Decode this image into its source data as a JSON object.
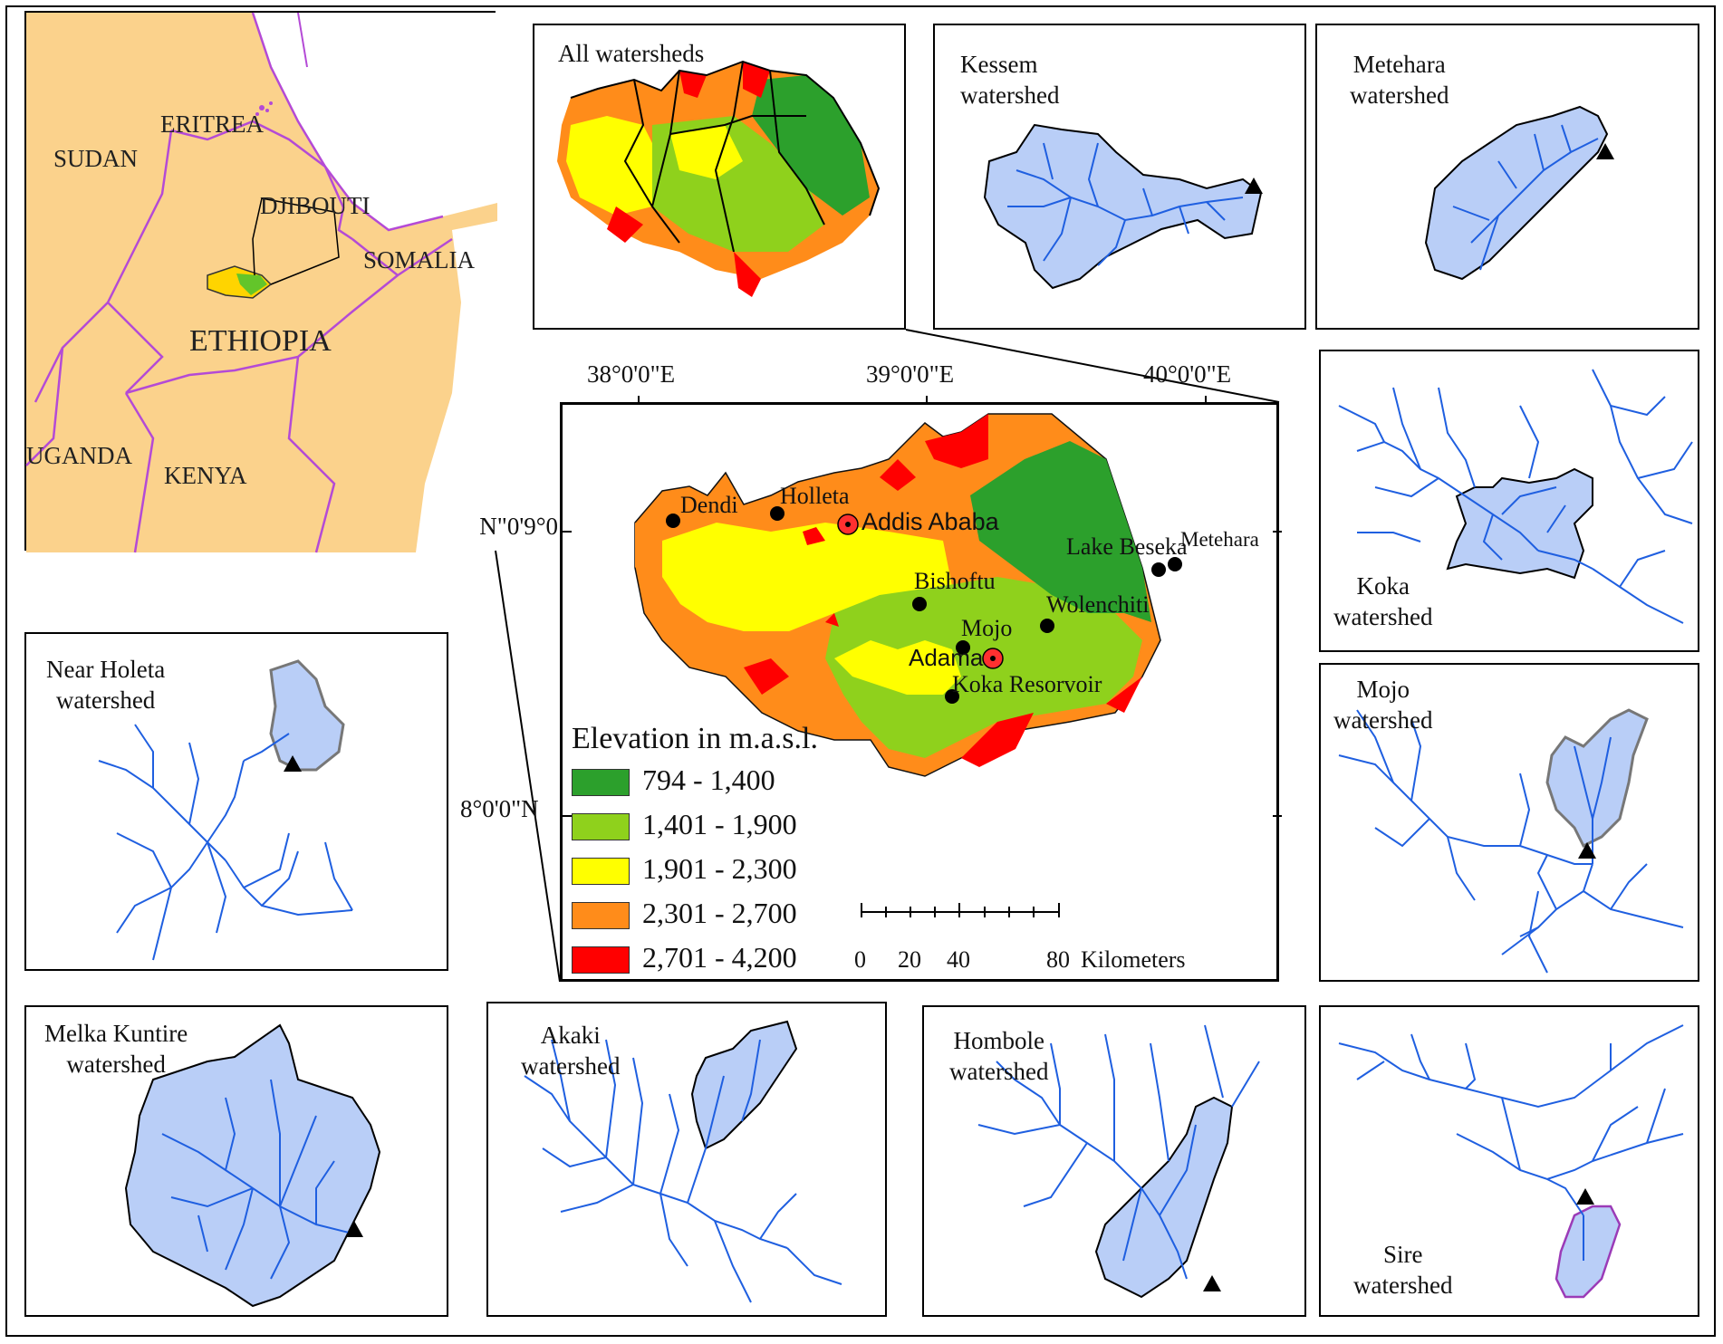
{
  "locator": {
    "countries": [
      {
        "id": "sudan",
        "label": "SUDAN"
      },
      {
        "id": "eritrea",
        "label": "ERITREA"
      },
      {
        "id": "djibouti",
        "label": "DJIBOUTI"
      },
      {
        "id": "somalia",
        "label": "SOMALIA"
      },
      {
        "id": "ethiopia",
        "label": "ETHIOPIA"
      },
      {
        "id": "uganda",
        "label": "UGANDA"
      },
      {
        "id": "kenya",
        "label": "KENYA"
      }
    ]
  },
  "main_map": {
    "longitudes": [
      "38°0'0\"E",
      "39°0'0\"E",
      "40°0'0\"E"
    ],
    "latitudes": [
      "9°0'0\"N",
      "8°0'0\"N"
    ],
    "towns": [
      {
        "id": "dendi",
        "label": "Dendi"
      },
      {
        "id": "holleta",
        "label": "Holleta"
      },
      {
        "id": "addis",
        "label": "Addis Ababa",
        "capital": true
      },
      {
        "id": "beseka",
        "label": "Lake Beseka"
      },
      {
        "id": "metehara",
        "label": "Metehara"
      },
      {
        "id": "bishoftu",
        "label": "Bishoftu"
      },
      {
        "id": "wolenchiti",
        "label": "Wolenchiti"
      },
      {
        "id": "mojo",
        "label": "Mojo"
      },
      {
        "id": "adama",
        "label": "Adama",
        "capital": true
      },
      {
        "id": "koka",
        "label": "Koka Resorvoir"
      }
    ],
    "legend": {
      "title": "Elevation in m.a.s.l.",
      "classes": [
        {
          "label": "794 - 1,400",
          "color": "#2ca02c"
        },
        {
          "label": "1,401 - 1,900",
          "color": "#8fd11c"
        },
        {
          "label": "1,901 - 2,300",
          "color": "#ffff00"
        },
        {
          "label": "2,301 - 2,700",
          "color": "#ff8c1a"
        },
        {
          "label": "2,701 - 4,200",
          "color": "#ff0000"
        }
      ]
    },
    "scalebar": {
      "ticks": [
        "0",
        "20",
        "40",
        "80"
      ],
      "unit": "Kilometers"
    }
  },
  "panels": {
    "all": "All watersheds",
    "kessem": "Kessem\nwatershed",
    "metehara": "Metehara\nwatershed",
    "koka": "Koka\nwatershed",
    "mojo": "Mojo\nwatershed",
    "holeta": "Near Holeta\nwatershed",
    "melka": "Melka Kuntire\nwatershed",
    "akaki": "Akaki\nwatershed",
    "hombole": "Hombole\nwatershed",
    "sire": "Sire\nwatershed"
  },
  "colors": {
    "land": "#fbd28c",
    "border": "#b44ad6",
    "watershed_fill": "#b9cef7",
    "river": "#1f5fe0"
  }
}
